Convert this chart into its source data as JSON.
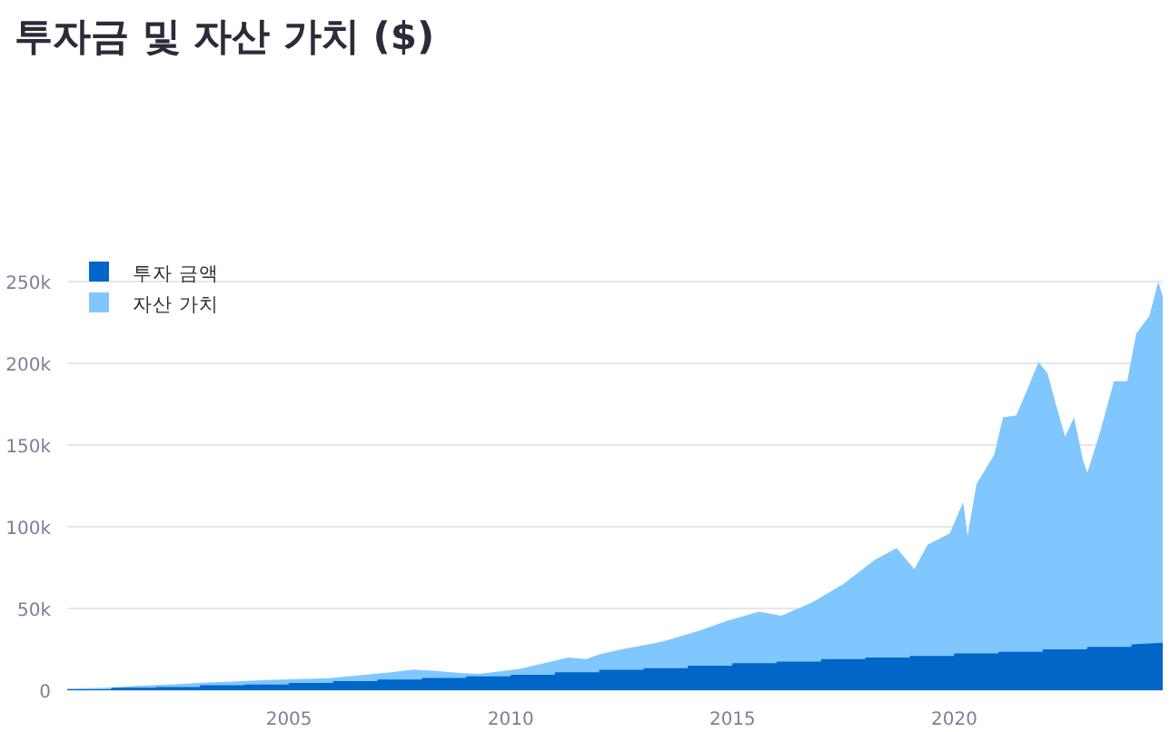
{
  "chart_data": {
    "type": "area",
    "title": "투자금 및 자산 가치 ($)",
    "xlim": [
      2000,
      2024.7
    ],
    "xticks": [
      2005,
      2010,
      2015,
      2020
    ],
    "ylim": [
      0,
      250000
    ],
    "yticks": [
      0,
      {
        "value": 50000,
        "label": "50k"
      },
      {
        "value": 100000,
        "label": "100k"
      },
      {
        "value": 150000,
        "label": "150k"
      },
      {
        "value": 200000,
        "label": "200k"
      },
      {
        "value": 250000,
        "label": "250k"
      }
    ],
    "grid": "y",
    "legend": "top left",
    "series": [
      {
        "name": "자산 가치",
        "color": "#80c6ff",
        "x": [
          2000,
          2000.9,
          2001.6,
          2002.5,
          2003.3,
          2004.5,
          2005.9,
          2007.3,
          2007.8,
          2008.3,
          2008.9,
          2009.3,
          2010.2,
          2011.3,
          2011.7,
          2012.0,
          2012.5,
          2013.4,
          2014.2,
          2014.9,
          2015.6,
          2016.1,
          2016.8,
          2017.5,
          2018.2,
          2018.7,
          2019.1,
          2019.4,
          2019.9,
          2020.2,
          2020.3,
          2020.5,
          2020.9,
          2021.1,
          2021.4,
          2021.6,
          2021.9,
          2022.1,
          2022.3,
          2022.5,
          2022.7,
          2022.9,
          2023.0,
          2023.3,
          2023.6,
          2023.9,
          2024.1,
          2024.4,
          2024.6,
          2024.7
        ],
        "values": [
          1000,
          1500,
          2600,
          3700,
          4800,
          6300,
          7400,
          11000,
          12600,
          11800,
          10400,
          10000,
          13000,
          20000,
          19000,
          22000,
          25000,
          29600,
          36000,
          42600,
          48000,
          45600,
          53700,
          65000,
          79600,
          87000,
          74000,
          89000,
          96000,
          115000,
          94400,
          126000,
          144000,
          167000,
          168000,
          181000,
          200700,
          194000,
          174000,
          155000,
          167000,
          141000,
          133000,
          159000,
          189000,
          189000,
          218000,
          229000,
          250000,
          241000
        ]
      },
      {
        "name": "투자 금액",
        "color": "#0066c8",
        "x": [
          2000,
          2000.99,
          2001,
          2001.99,
          2002,
          2002.99,
          2003,
          2003.99,
          2004,
          2004.99,
          2005,
          2005.99,
          2006,
          2006.99,
          2007,
          2007.99,
          2008,
          2008.99,
          2009,
          2009.99,
          2010,
          2010.99,
          2011,
          2011.99,
          2012,
          2012.99,
          2013,
          2013.99,
          2014,
          2014.99,
          2015,
          2015.99,
          2016,
          2016.99,
          2017,
          2017.99,
          2018,
          2018.99,
          2019,
          2019.99,
          2020,
          2020.99,
          2021,
          2021.99,
          2022,
          2022.99,
          2023,
          2023.99,
          2024,
          2024.7
        ],
        "values": [
          500,
          500,
          1500,
          1500,
          2000,
          2000,
          3000,
          3000,
          3500,
          3500,
          4500,
          4500,
          5500,
          5500,
          6500,
          6500,
          7500,
          7500,
          8500,
          8500,
          9500,
          9500,
          11000,
          11000,
          12500,
          12500,
          13500,
          13500,
          15000,
          15000,
          16500,
          16500,
          17500,
          17500,
          19000,
          19000,
          20000,
          20000,
          21000,
          21000,
          22500,
          22500,
          23500,
          23500,
          25000,
          25000,
          26500,
          26500,
          28000,
          29000
        ]
      }
    ]
  }
}
